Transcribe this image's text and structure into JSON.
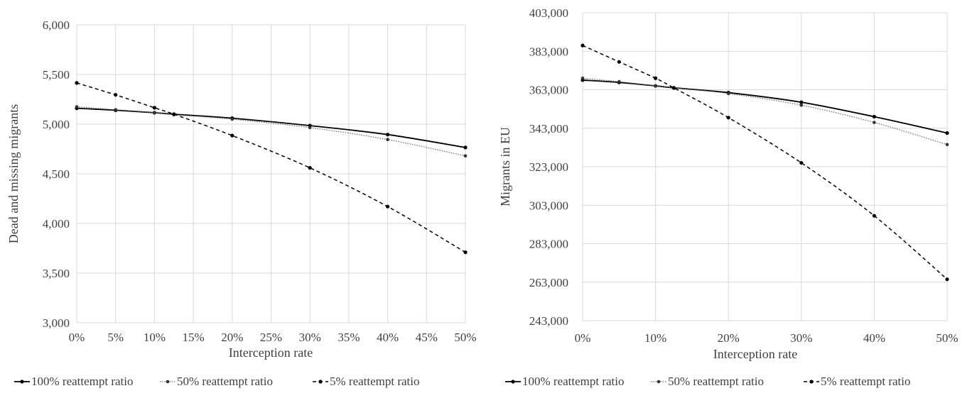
{
  "chart_data": [
    {
      "type": "line",
      "title": "",
      "xlabel": "Interception rate",
      "ylabel": "Dead and missing migrants",
      "x": [
        0,
        5,
        10,
        12.5,
        20,
        30,
        40,
        50
      ],
      "x_ticks": [
        "0%",
        "5%",
        "10%",
        "15%",
        "20%",
        "25%",
        "30%",
        "35%",
        "40%",
        "45%",
        "50%"
      ],
      "x_tick_values": [
        0,
        5,
        10,
        15,
        20,
        25,
        30,
        35,
        40,
        45,
        50
      ],
      "xlim": [
        0,
        50
      ],
      "ylim": [
        3000,
        6000
      ],
      "y_ticks": [
        3000,
        3500,
        4000,
        4500,
        5000,
        5500,
        6000
      ],
      "y_tick_labels": [
        "3,000",
        "3,500",
        "4,000",
        "4,500",
        "5,000",
        "5,500",
        "6,000"
      ],
      "grid": true,
      "legend_position": "bottom",
      "series": [
        {
          "name": "100% reattempt ratio",
          "style": "solid",
          "values": [
            5160,
            5140,
            5115,
            5100,
            5060,
            4985,
            4895,
            4765
          ]
        },
        {
          "name": "50% reattempt ratio",
          "style": "dotted",
          "values": [
            5175,
            5145,
            5115,
            5095,
            5050,
            4965,
            4845,
            4680
          ]
        },
        {
          "name": "5% reattempt ratio",
          "style": "dashed",
          "values": [
            5415,
            5295,
            5165,
            5100,
            4885,
            4560,
            4170,
            3710
          ]
        }
      ]
    },
    {
      "type": "line",
      "title": "",
      "xlabel": "Interception rate",
      "ylabel": "Migrants in EU",
      "x": [
        0,
        5,
        10,
        12.5,
        20,
        30,
        40,
        50
      ],
      "x_ticks": [
        "0%",
        "10%",
        "20%",
        "30%",
        "40%",
        "50%"
      ],
      "x_tick_values": [
        0,
        10,
        20,
        30,
        40,
        50
      ],
      "xlim": [
        0,
        50
      ],
      "ylim": [
        243000,
        403000
      ],
      "y_ticks": [
        243000,
        263000,
        283000,
        303000,
        323000,
        343000,
        363000,
        383000,
        403000
      ],
      "y_tick_labels": [
        "243,000",
        "263,000",
        "283,000",
        "303,000",
        "323,000",
        "343,000",
        "363,000",
        "383,000",
        "403,000"
      ],
      "grid": true,
      "legend_position": "bottom",
      "series": [
        {
          "name": "100% reattempt ratio",
          "style": "solid",
          "values": [
            368000,
            366800,
            365000,
            364000,
            361500,
            356500,
            349000,
            340500
          ]
        },
        {
          "name": "50% reattempt ratio",
          "style": "dotted",
          "values": [
            369000,
            367200,
            365000,
            364000,
            361000,
            355000,
            346000,
            334500
          ]
        },
        {
          "name": "5% reattempt ratio",
          "style": "dashed",
          "values": [
            386000,
            377500,
            369000,
            364000,
            348500,
            325000,
            297500,
            264500
          ]
        }
      ]
    }
  ]
}
